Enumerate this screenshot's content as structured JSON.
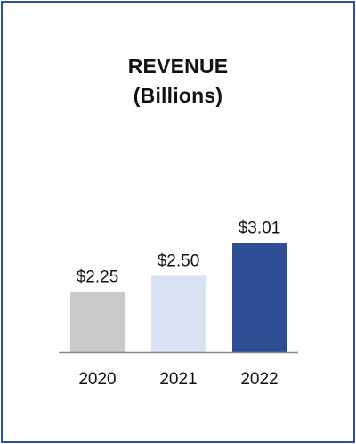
{
  "chart_data": {
    "type": "bar",
    "title": "REVENUE",
    "subtitle": "(Billions)",
    "categories": [
      "2020",
      "2021",
      "2022"
    ],
    "values": [
      2.25,
      2.5,
      3.01
    ],
    "value_labels": [
      "$2.25",
      "$2.50",
      "$3.01"
    ],
    "colors": [
      "#C8C9CA",
      "#D9E2F2",
      "#2E4F96"
    ],
    "xlabel": "",
    "ylabel": "",
    "grid": false,
    "legend": "none"
  },
  "colors": {
    "frame_border": "#2E4F96",
    "axis": "#888888"
  }
}
